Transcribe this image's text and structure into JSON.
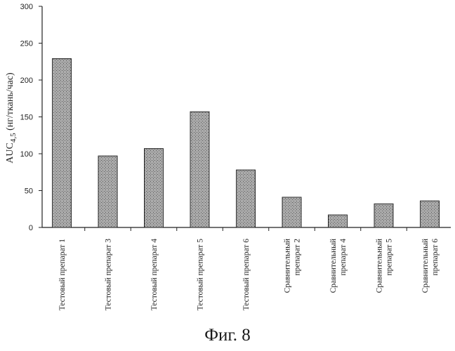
{
  "caption": "Фиг. 8",
  "chart_data": {
    "type": "bar",
    "ylabel_main": "AUC",
    "ylabel_sub": "4,5",
    "ylabel_rest": " (нг/ткань/час)",
    "ylim": [
      0,
      300
    ],
    "yticks": [
      0,
      50,
      100,
      150,
      200,
      250,
      300
    ],
    "categories": [
      [
        "Тестовый препарат 1"
      ],
      [
        "Тестовый препарат 3"
      ],
      [
        "Тестовый препарат 4"
      ],
      [
        "Тестовый препарат 5"
      ],
      [
        "Тестовый препарат 6"
      ],
      [
        "Сравнительный",
        "препарат 2"
      ],
      [
        "Сравнительный",
        "препарат 4"
      ],
      [
        "Сравнительный",
        "препарат 5"
      ],
      [
        "Сравнительный",
        "препарат 6"
      ]
    ],
    "values": [
      229,
      97,
      107,
      157,
      78,
      41,
      17,
      32,
      36
    ],
    "grid": false,
    "bar_color": "#9a9a9a"
  }
}
